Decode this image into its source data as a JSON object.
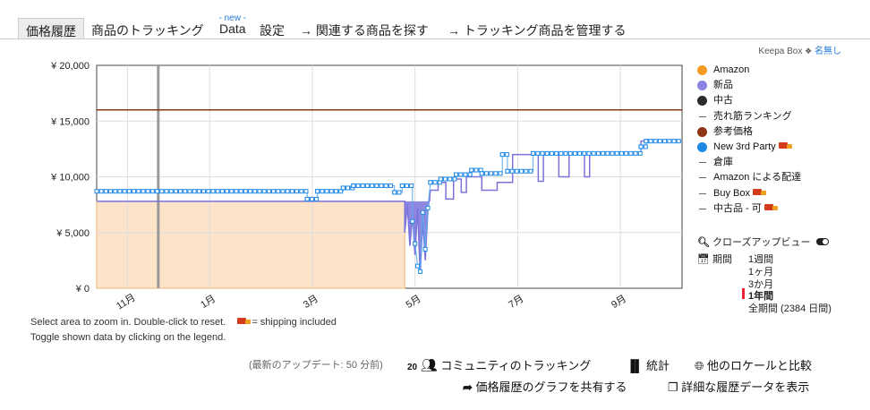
{
  "tabs": {
    "price_history": "価格履歴",
    "tracking": "商品のトラッキング",
    "data_badge": "- new -",
    "data": "Data",
    "settings": "設定",
    "related": "→ 関連する商品を探す",
    "manage": "→ トラッキング商品を管理する"
  },
  "box": {
    "label": "Keepa Box",
    "link": "名無し"
  },
  "legend": [
    {
      "label": "Amazon",
      "marker": "dot",
      "color": "#f59a23"
    },
    {
      "label": "新品",
      "marker": "dot",
      "color": "#8a84e0"
    },
    {
      "label": "中古",
      "marker": "dot",
      "color": "#2b2b2b"
    },
    {
      "label": "売れ筋ランキング",
      "marker": "dash",
      "color": "#666666"
    },
    {
      "label": "参考価格",
      "marker": "dot",
      "color": "#8b3512"
    },
    {
      "label": "New 3rd Party",
      "marker": "dot",
      "color": "#1e88e5",
      "truck": true
    },
    {
      "label": "倉庫",
      "marker": "dash",
      "color": "#666666"
    },
    {
      "label": "Amazon による配達",
      "marker": "dash",
      "color": "#666666"
    },
    {
      "label": "Buy Box",
      "marker": "dash",
      "color": "#666666",
      "truck": true
    },
    {
      "label": "中古品 - 可",
      "marker": "dash",
      "color": "#666666",
      "truck": true
    }
  ],
  "controls": {
    "closeup": "クローズアップビュー",
    "period_label": "期間",
    "periods": [
      "1週間",
      "1ヶ月",
      "3か月",
      "1年間",
      "全期間 (2384 日間)"
    ],
    "selected_period": 3
  },
  "notes": {
    "zoom": "Select area to zoom in. Double-click to reset.",
    "shipping": "= shipping included",
    "toggle": "Toggle shown data by clicking on the legend."
  },
  "footer": {
    "updated": "(最新のアップデート: 50 分前)",
    "community_count": "20",
    "community": "コミュニティのトラッキング",
    "stats": "統計",
    "compare": "他のロケールと比較",
    "share": "価格履歴のグラフを共有する",
    "details": "詳細な履歴データを表示"
  },
  "chart_data": {
    "type": "line",
    "y_tick_labels": [
      "¥ 0",
      "¥ 5,000",
      "¥ 10,000",
      "¥ 15,000",
      "¥ 20,000"
    ],
    "ylim": [
      0,
      20000
    ],
    "x_tick_labels": [
      "11月",
      "1月",
      "3月",
      "5月",
      "7月",
      "9月"
    ],
    "xlim": [
      -0.2,
      11.2
    ],
    "reference_price": 16000,
    "series": [
      {
        "name": "New 3rd Party",
        "color": "#1e88e5",
        "points": [
          [
            -0.2,
            8700
          ],
          [
            3.9,
            8700
          ],
          [
            3.9,
            8000
          ],
          [
            4.1,
            8000
          ],
          [
            4.1,
            8700
          ],
          [
            4.6,
            8700
          ],
          [
            4.6,
            9000
          ],
          [
            4.8,
            9000
          ],
          [
            4.8,
            9200
          ],
          [
            5.6,
            9200
          ],
          [
            5.6,
            8600
          ],
          [
            5.75,
            8600
          ],
          [
            5.75,
            9200
          ],
          [
            5.95,
            9200
          ],
          [
            5.95,
            6000
          ],
          [
            6.0,
            4000
          ],
          [
            6.05,
            2000
          ],
          [
            6.1,
            1500
          ],
          [
            6.15,
            6800
          ],
          [
            6.2,
            3500
          ],
          [
            6.25,
            7200
          ],
          [
            6.3,
            9500
          ],
          [
            6.5,
            9500
          ],
          [
            6.5,
            9800
          ],
          [
            6.8,
            9800
          ],
          [
            6.8,
            10200
          ],
          [
            7.1,
            10200
          ],
          [
            7.1,
            10600
          ],
          [
            7.3,
            10600
          ],
          [
            7.3,
            10300
          ],
          [
            7.7,
            10300
          ],
          [
            7.7,
            12000
          ],
          [
            7.8,
            12000
          ],
          [
            7.8,
            10500
          ],
          [
            8.3,
            10500
          ],
          [
            8.3,
            12100
          ],
          [
            10.4,
            12100
          ],
          [
            10.4,
            12700
          ],
          [
            10.5,
            12700
          ],
          [
            10.5,
            13200
          ],
          [
            11.2,
            13200
          ]
        ]
      },
      {
        "name": "新品",
        "color": "#7b73db",
        "points": [
          [
            -0.2,
            7800
          ],
          [
            5.8,
            7800
          ],
          [
            5.8,
            5000
          ],
          [
            5.85,
            7500
          ],
          [
            5.9,
            3800
          ],
          [
            5.95,
            6500
          ],
          [
            6.0,
            3000
          ],
          [
            6.05,
            7200
          ],
          [
            6.1,
            1300
          ],
          [
            6.15,
            6000
          ],
          [
            6.2,
            2500
          ],
          [
            6.25,
            7000
          ],
          [
            6.3,
            8800
          ],
          [
            6.45,
            8800
          ],
          [
            6.45,
            9500
          ],
          [
            6.6,
            9500
          ],
          [
            6.6,
            8000
          ],
          [
            6.75,
            8000
          ],
          [
            6.75,
            9800
          ],
          [
            6.9,
            9800
          ],
          [
            6.9,
            8600
          ],
          [
            7.0,
            8600
          ],
          [
            7.0,
            10000
          ],
          [
            7.3,
            10000
          ],
          [
            7.3,
            8800
          ],
          [
            7.6,
            8800
          ],
          [
            7.6,
            9500
          ],
          [
            7.9,
            9500
          ],
          [
            7.9,
            12000
          ],
          [
            8.4,
            12000
          ],
          [
            8.4,
            9600
          ],
          [
            8.5,
            9600
          ],
          [
            8.5,
            12000
          ],
          [
            8.8,
            12000
          ],
          [
            8.8,
            10000
          ],
          [
            9.0,
            10000
          ],
          [
            9.0,
            12100
          ],
          [
            9.3,
            12100
          ],
          [
            9.3,
            10000
          ],
          [
            9.4,
            10000
          ],
          [
            9.4,
            12100
          ],
          [
            10.4,
            12100
          ],
          [
            10.4,
            13200
          ],
          [
            11.2,
            13200
          ]
        ]
      },
      {
        "name": "Amazon",
        "color": "#f59a23",
        "points": [
          [
            -0.2,
            7800
          ],
          [
            5.8,
            7800
          ]
        ]
      }
    ]
  }
}
